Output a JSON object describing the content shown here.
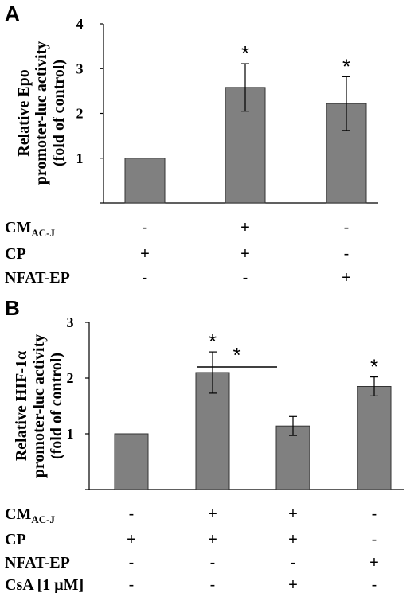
{
  "chart_data": [
    {
      "type": "bar",
      "panel": "A",
      "ylabel": [
        "Relative Epo",
        "promoter-luc activity",
        "(fold of control)"
      ],
      "ylim": [
        0,
        4
      ],
      "yticks": [
        "1",
        "2",
        "3",
        "4"
      ],
      "categories": [
        "1",
        "2",
        "3"
      ],
      "values": [
        1.0,
        2.58,
        2.22
      ],
      "errors": [
        0,
        0.53,
        0.6
      ],
      "significance": [
        "",
        "*",
        "*"
      ],
      "bar_color": "#808080",
      "treatments": [
        {
          "label": "CM",
          "sub": "AC-J",
          "signs": [
            "-",
            "+",
            "-"
          ]
        },
        {
          "label": "CP",
          "sub": "",
          "signs": [
            "+",
            "+",
            "-"
          ]
        },
        {
          "label": "NFAT-EP",
          "sub": "",
          "signs": [
            "-",
            "-",
            "+"
          ]
        }
      ]
    },
    {
      "type": "bar",
      "panel": "B",
      "ylabel": [
        "Relative HIF-1α",
        "promoter-luc activity",
        "(fold of control)"
      ],
      "ylim": [
        0,
        3
      ],
      "yticks": [
        "1",
        "2",
        "3"
      ],
      "categories": [
        "1",
        "2",
        "3",
        "4"
      ],
      "values": [
        1.0,
        2.1,
        1.14,
        1.85
      ],
      "errors": [
        0,
        0.37,
        0.17,
        0.17
      ],
      "significance": [
        "",
        "*",
        "",
        "*"
      ],
      "bracket": {
        "from": 1,
        "to": 2,
        "label": "*"
      },
      "bar_color": "#808080",
      "treatments": [
        {
          "label": "CM",
          "sub": "AC-J",
          "signs": [
            "-",
            "+",
            "+",
            "-"
          ]
        },
        {
          "label": "CP",
          "sub": "",
          "signs": [
            "+",
            "+",
            "+",
            "-"
          ]
        },
        {
          "label": "NFAT-EP",
          "sub": "",
          "signs": [
            "-",
            "-",
            "-",
            "+"
          ]
        },
        {
          "label": "CsA [1 μM]",
          "sub": "",
          "signs": [
            "-",
            "-",
            "+",
            "-"
          ]
        }
      ]
    }
  ]
}
